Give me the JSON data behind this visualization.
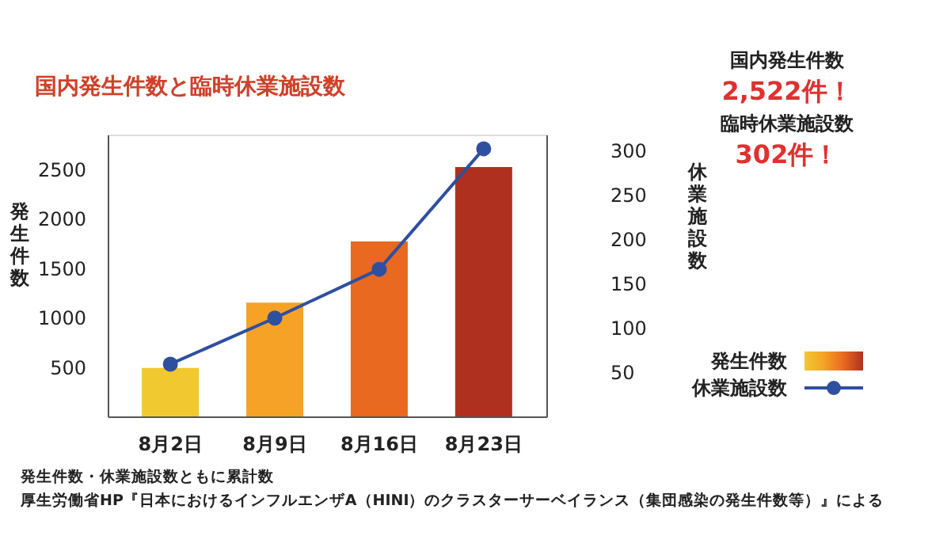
{
  "chart_data": {
    "type": "bar",
    "title": "国内発生件数と臨時休業施設数",
    "categories": [
      "8月2日",
      "8月9日",
      "8月16日",
      "8月23日"
    ],
    "series": [
      {
        "name": "発生件数",
        "colors": [
          "#f2c830",
          "#f5a227",
          "#e8691f",
          "#b03020"
        ],
        "values": [
          490,
          1150,
          1770,
          2522
        ]
      },
      {
        "name": "休業施設数",
        "type": "line",
        "axis": "y2",
        "color": "#2f4fa0",
        "marker": "circle",
        "values": [
          59,
          111,
          166,
          302
        ]
      }
    ],
    "ylabel": "発生件数",
    "y2label": "休業施設数",
    "ylim": [
      0,
      2850
    ],
    "yticks": [
      500,
      1000,
      1500,
      2000,
      2500
    ],
    "y2lim": [
      0,
      318
    ],
    "y2ticks": [
      50,
      100,
      150,
      200,
      250,
      300
    ],
    "grid": false,
    "legend": "right",
    "annotations": [
      "国内発生件数",
      "2,522件！",
      "臨時休業施設数",
      "302件！",
      "発生件数・休業施設数ともに累計数",
      "厚生労働省HP『日本におけるインフルエンザA（HINI）のクラスターサーベイランス（集団感染の発生件数等）』による"
    ]
  }
}
